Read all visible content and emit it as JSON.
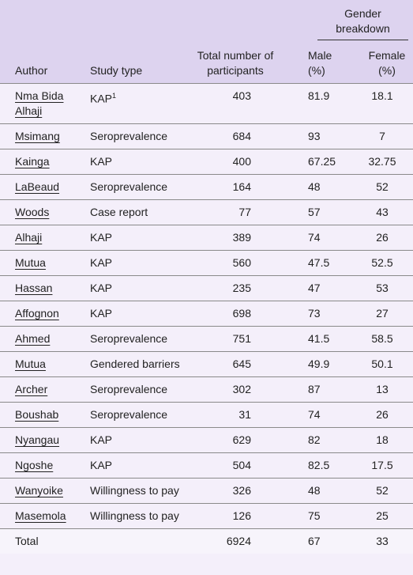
{
  "table": {
    "header": {
      "author": "Author",
      "study_type": "Study type",
      "total": "Total number of participants",
      "gender": "Gender breakdown",
      "male": "Male (%)",
      "female": "Female (%)"
    },
    "rows": [
      [
        "Nma Bida Alhaji",
        {
          "text": "KAP",
          "sup": "1"
        },
        "403",
        "81.9",
        "18.1"
      ],
      [
        "Msimang",
        "Seroprevalence",
        "684",
        "93",
        "7"
      ],
      [
        "Kainga",
        "KAP",
        "400",
        "67.25",
        "32.75"
      ],
      [
        "LaBeaud",
        "Seroprevalence",
        "164",
        "48",
        "52"
      ],
      [
        "Woods",
        "Case report",
        "77",
        "57",
        "43"
      ],
      [
        "Alhaji",
        "KAP",
        "389",
        "74",
        "26"
      ],
      [
        "Mutua",
        "KAP",
        "560",
        "47.5",
        "52.5"
      ],
      [
        "Hassan",
        "KAP",
        "235",
        "47",
        "53"
      ],
      [
        "Affognon",
        "KAP",
        "698",
        "73",
        "27"
      ],
      [
        "Ahmed",
        "Seroprevalence",
        "751",
        "41.5",
        "58.5"
      ],
      [
        "Mutua",
        "Gendered barriers",
        "645",
        "49.9",
        "50.1"
      ],
      [
        "Archer",
        "Seroprevalence",
        "302",
        "87",
        "13"
      ],
      [
        "Boushab",
        "Seroprevalence",
        "31",
        "74",
        "26"
      ],
      [
        "Nyangau",
        "KAP",
        "629",
        "82",
        "18"
      ],
      [
        "Ngoshe",
        "KAP",
        "504",
        "82.5",
        "17.5"
      ],
      [
        "Wanyoike",
        "Willingness to pay",
        "326",
        "48",
        "52"
      ],
      [
        "Masemola",
        "Willingness to pay",
        "126",
        "75",
        "25"
      ]
    ],
    "total": [
      "Total",
      "6924",
      "67",
      "33"
    ]
  }
}
